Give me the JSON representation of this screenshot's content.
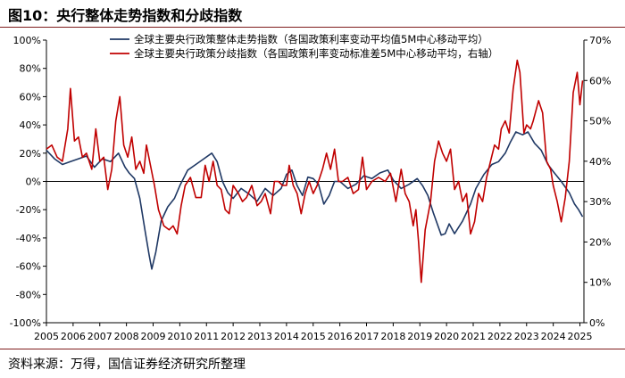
{
  "title": "图10：央行整体走势指数和分歧指数",
  "source": "资料来源：万得，国信证券经济研究所整理",
  "chart_data": {
    "type": "line",
    "title": "图10：央行整体走势指数和分歧指数",
    "xlabel": "",
    "ylabel": "",
    "x_ticks": [
      "2005",
      "2006",
      "2007",
      "2008",
      "2009",
      "2010",
      "2011",
      "2012",
      "2013",
      "2014",
      "2015",
      "2016",
      "2017",
      "2018",
      "2019",
      "2020",
      "2021",
      "2022",
      "2023",
      "2024",
      "2025"
    ],
    "x_range": [
      2005.0,
      2025.15
    ],
    "left_axis": {
      "ticks": [
        "-100%",
        "-80%",
        "-60%",
        "-40%",
        "-20%",
        "0%",
        "20%",
        "40%",
        "60%",
        "80%",
        "100%"
      ],
      "min": -100,
      "max": 100,
      "unit": "%"
    },
    "right_axis": {
      "ticks": [
        "0%",
        "10%",
        "20%",
        "30%",
        "40%",
        "50%",
        "60%",
        "70%"
      ],
      "min": 0,
      "max": 70,
      "unit": "%"
    },
    "grid": false,
    "legend_position": "top",
    "series": [
      {
        "name": "全球主要央行政策整体走势指数（各国政策利率变动平均值5M中心移动平均）",
        "color": "#1f3864",
        "axis": "left",
        "points": [
          [
            2005.0,
            22
          ],
          [
            2005.3,
            16
          ],
          [
            2005.6,
            12
          ],
          [
            2005.9,
            14
          ],
          [
            2006.2,
            16
          ],
          [
            2006.5,
            18
          ],
          [
            2006.8,
            10
          ],
          [
            2007.1,
            16
          ],
          [
            2007.4,
            14
          ],
          [
            2007.7,
            20
          ],
          [
            2007.95,
            10
          ],
          [
            2008.1,
            6
          ],
          [
            2008.3,
            2
          ],
          [
            2008.5,
            -12
          ],
          [
            2008.7,
            -35
          ],
          [
            2008.85,
            -52
          ],
          [
            2008.95,
            -62
          ],
          [
            2009.1,
            -50
          ],
          [
            2009.3,
            -28
          ],
          [
            2009.55,
            -18
          ],
          [
            2009.8,
            -12
          ],
          [
            2010.0,
            -3
          ],
          [
            2010.3,
            8
          ],
          [
            2010.6,
            12
          ],
          [
            2010.9,
            16
          ],
          [
            2011.2,
            20
          ],
          [
            2011.4,
            14
          ],
          [
            2011.6,
            0
          ],
          [
            2011.8,
            -8
          ],
          [
            2012.0,
            -12
          ],
          [
            2012.3,
            -5
          ],
          [
            2012.6,
            -9
          ],
          [
            2012.9,
            -14
          ],
          [
            2013.2,
            -5
          ],
          [
            2013.5,
            -10
          ],
          [
            2013.8,
            -5
          ],
          [
            2014.0,
            5
          ],
          [
            2014.2,
            8
          ],
          [
            2014.4,
            -3
          ],
          [
            2014.6,
            -10
          ],
          [
            2014.8,
            3
          ],
          [
            2015.0,
            2
          ],
          [
            2015.2,
            -2
          ],
          [
            2015.4,
            -16
          ],
          [
            2015.6,
            -10
          ],
          [
            2015.8,
            0
          ],
          [
            2016.0,
            0
          ],
          [
            2016.3,
            -5
          ],
          [
            2016.6,
            -2
          ],
          [
            2016.9,
            4
          ],
          [
            2017.2,
            2
          ],
          [
            2017.5,
            6
          ],
          [
            2017.8,
            8
          ],
          [
            2018.0,
            1
          ],
          [
            2018.3,
            -5
          ],
          [
            2018.6,
            -2
          ],
          [
            2018.9,
            2
          ],
          [
            2019.1,
            -3
          ],
          [
            2019.3,
            -10
          ],
          [
            2019.5,
            -22
          ],
          [
            2019.8,
            -38
          ],
          [
            2019.95,
            -37
          ],
          [
            2020.1,
            -30
          ],
          [
            2020.3,
            -37
          ],
          [
            2020.6,
            -28
          ],
          [
            2020.9,
            -16
          ],
          [
            2021.1,
            -5
          ],
          [
            2021.4,
            5
          ],
          [
            2021.7,
            12
          ],
          [
            2021.95,
            14
          ],
          [
            2022.2,
            20
          ],
          [
            2022.4,
            28
          ],
          [
            2022.6,
            35
          ],
          [
            2022.85,
            33
          ],
          [
            2023.05,
            35
          ],
          [
            2023.3,
            27
          ],
          [
            2023.55,
            22
          ],
          [
            2023.8,
            12
          ],
          [
            2024.0,
            7
          ],
          [
            2024.3,
            0
          ],
          [
            2024.6,
            -8
          ],
          [
            2024.8,
            -16
          ],
          [
            2024.95,
            -20
          ],
          [
            2025.1,
            -25
          ]
        ]
      },
      {
        "name": "全球主要央行政策分歧指数（各国政策利率变动标准差5M中心移动平均，右轴）",
        "color": "#c00000",
        "axis": "right",
        "points": [
          [
            2005.0,
            43
          ],
          [
            2005.2,
            44
          ],
          [
            2005.4,
            41
          ],
          [
            2005.6,
            40
          ],
          [
            2005.8,
            48
          ],
          [
            2005.9,
            58
          ],
          [
            2006.05,
            45
          ],
          [
            2006.2,
            46
          ],
          [
            2006.35,
            41
          ],
          [
            2006.5,
            42
          ],
          [
            2006.7,
            38
          ],
          [
            2006.85,
            48
          ],
          [
            2007.0,
            40
          ],
          [
            2007.15,
            41
          ],
          [
            2007.3,
            33
          ],
          [
            2007.45,
            38
          ],
          [
            2007.6,
            50
          ],
          [
            2007.75,
            56
          ],
          [
            2007.9,
            44
          ],
          [
            2008.05,
            41
          ],
          [
            2008.2,
            46
          ],
          [
            2008.35,
            38
          ],
          [
            2008.5,
            40
          ],
          [
            2008.65,
            37
          ],
          [
            2008.75,
            44
          ],
          [
            2008.9,
            39
          ],
          [
            2009.05,
            34
          ],
          [
            2009.2,
            28
          ],
          [
            2009.4,
            24
          ],
          [
            2009.6,
            23
          ],
          [
            2009.75,
            24
          ],
          [
            2009.9,
            22
          ],
          [
            2010.05,
            29
          ],
          [
            2010.2,
            34
          ],
          [
            2010.4,
            36
          ],
          [
            2010.6,
            31
          ],
          [
            2010.8,
            31
          ],
          [
            2010.95,
            39
          ],
          [
            2011.1,
            35
          ],
          [
            2011.25,
            40
          ],
          [
            2011.4,
            34
          ],
          [
            2011.55,
            33
          ],
          [
            2011.7,
            28
          ],
          [
            2011.85,
            27
          ],
          [
            2012.0,
            34
          ],
          [
            2012.2,
            32
          ],
          [
            2012.35,
            30
          ],
          [
            2012.5,
            31
          ],
          [
            2012.7,
            34
          ],
          [
            2012.9,
            29
          ],
          [
            2013.05,
            30
          ],
          [
            2013.2,
            32
          ],
          [
            2013.4,
            27
          ],
          [
            2013.55,
            35
          ],
          [
            2013.7,
            35
          ],
          [
            2013.85,
            34
          ],
          [
            2014.0,
            34
          ],
          [
            2014.1,
            39
          ],
          [
            2014.25,
            34
          ],
          [
            2014.4,
            32
          ],
          [
            2014.55,
            27
          ],
          [
            2014.7,
            32
          ],
          [
            2014.85,
            35
          ],
          [
            2015.0,
            32
          ],
          [
            2015.15,
            34
          ],
          [
            2015.35,
            38
          ],
          [
            2015.5,
            42
          ],
          [
            2015.65,
            38
          ],
          [
            2015.8,
            43
          ],
          [
            2015.95,
            35
          ],
          [
            2016.1,
            35
          ],
          [
            2016.3,
            36
          ],
          [
            2016.5,
            32
          ],
          [
            2016.7,
            33
          ],
          [
            2016.85,
            41
          ],
          [
            2017.0,
            33
          ],
          [
            2017.2,
            35
          ],
          [
            2017.45,
            36
          ],
          [
            2017.7,
            35
          ],
          [
            2017.9,
            37
          ],
          [
            2018.1,
            30
          ],
          [
            2018.3,
            38
          ],
          [
            2018.45,
            32
          ],
          [
            2018.6,
            30
          ],
          [
            2018.75,
            24
          ],
          [
            2018.85,
            28
          ],
          [
            2018.95,
            20
          ],
          [
            2019.05,
            10
          ],
          [
            2019.2,
            23
          ],
          [
            2019.4,
            30
          ],
          [
            2019.55,
            40
          ],
          [
            2019.7,
            45
          ],
          [
            2019.85,
            42
          ],
          [
            2020.0,
            40
          ],
          [
            2020.15,
            43
          ],
          [
            2020.3,
            33
          ],
          [
            2020.45,
            35
          ],
          [
            2020.6,
            30
          ],
          [
            2020.75,
            32
          ],
          [
            2020.9,
            22
          ],
          [
            2021.05,
            25
          ],
          [
            2021.2,
            32
          ],
          [
            2021.35,
            30
          ],
          [
            2021.5,
            36
          ],
          [
            2021.65,
            40
          ],
          [
            2021.8,
            44
          ],
          [
            2021.95,
            43
          ],
          [
            2022.05,
            48
          ],
          [
            2022.2,
            50
          ],
          [
            2022.35,
            47
          ],
          [
            2022.5,
            58
          ],
          [
            2022.65,
            65
          ],
          [
            2022.75,
            62
          ],
          [
            2022.9,
            47
          ],
          [
            2023.0,
            49
          ],
          [
            2023.15,
            48
          ],
          [
            2023.25,
            50
          ],
          [
            2023.45,
            55
          ],
          [
            2023.6,
            52
          ],
          [
            2023.75,
            40
          ],
          [
            2023.9,
            38
          ],
          [
            2024.0,
            34
          ],
          [
            2024.15,
            30
          ],
          [
            2024.3,
            25
          ],
          [
            2024.45,
            31
          ],
          [
            2024.6,
            40
          ],
          [
            2024.75,
            57
          ],
          [
            2024.9,
            62
          ],
          [
            2025.0,
            54
          ],
          [
            2025.1,
            60
          ]
        ]
      }
    ]
  }
}
